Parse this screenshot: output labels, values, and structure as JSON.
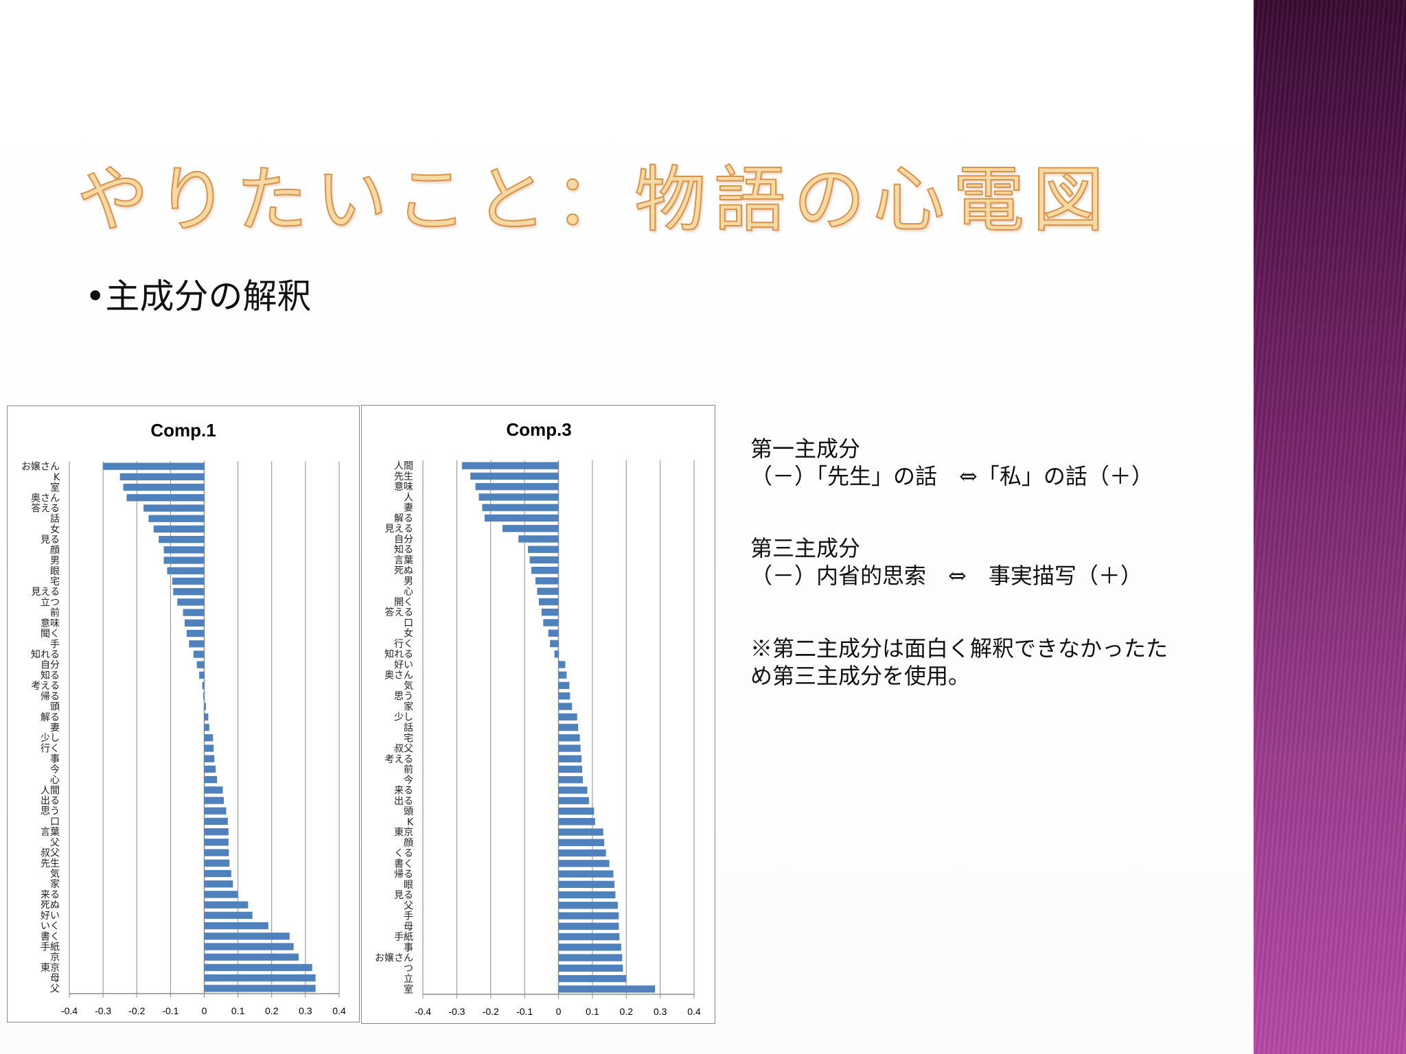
{
  "slide": {
    "title": "やりたいこと：物語の心電図",
    "bullet": "•主成分の解釈",
    "notes": [
      {
        "heading": "第一主成分",
        "body": "（－）「先生」の話　⇔「私」の話（＋）"
      },
      {
        "heading": "第三主成分",
        "body": "（－）内省的思索　⇔　事実描写（＋）"
      }
    ],
    "remark_lines": [
      "※第二主成分は面白く解釈できなかったた",
      "め第三主成分を使用。"
    ]
  },
  "colors": {
    "bar": "#4f81bd",
    "sidebar_top": "#3a0a32",
    "sidebar_bottom": "#b54aa6",
    "title_fill": "#f7d9a3"
  },
  "chart_data": [
    {
      "type": "bar",
      "orientation": "horizontal",
      "title": "Comp.1",
      "xlim": [
        -0.4,
        0.4
      ],
      "xticks": [
        "-0.4",
        "-0.3",
        "-0.2",
        "-0.1",
        "0",
        "0.1",
        "0.2",
        "0.3",
        "0.4"
      ],
      "grid": true,
      "categories": [
        "お嬢さん",
        "K",
        "室",
        "奥さん",
        "答える",
        "話",
        "女",
        "見る",
        "顔",
        "男",
        "眼",
        "宅",
        "見える",
        "立つ",
        "前",
        "意味",
        "聞く",
        "手",
        "知れる",
        "自分",
        "知る",
        "考える",
        "帰る",
        "頭",
        "解る",
        "妻",
        "少し",
        "行く",
        "事",
        "今",
        "心",
        "人間",
        "出る",
        "思う",
        "口",
        "言葉",
        "父",
        "叔父",
        "先生",
        "気",
        "家",
        "来る",
        "死ぬ",
        "好い",
        "いく",
        "書く",
        "手紙",
        "京",
        "東京",
        "母",
        "父"
      ],
      "values": [
        -0.3,
        -0.25,
        -0.24,
        -0.23,
        -0.18,
        -0.165,
        -0.15,
        -0.135,
        -0.12,
        -0.12,
        -0.11,
        -0.095,
        -0.092,
        -0.08,
        -0.063,
        -0.058,
        -0.052,
        -0.045,
        -0.032,
        -0.022,
        -0.015,
        -0.006,
        -0.003,
        0.005,
        0.012,
        0.015,
        0.026,
        0.028,
        0.03,
        0.034,
        0.038,
        0.055,
        0.058,
        0.065,
        0.07,
        0.072,
        0.072,
        0.073,
        0.075,
        0.08,
        0.085,
        0.1,
        0.13,
        0.143,
        0.19,
        0.253,
        0.265,
        0.28,
        0.32,
        0.33,
        0.33
      ]
    },
    {
      "type": "bar",
      "orientation": "horizontal",
      "title": "Comp.3",
      "xlim": [
        -0.4,
        0.4
      ],
      "xticks": [
        "-0.4",
        "-0.3",
        "-0.2",
        "-0.1",
        "0",
        "0.1",
        "0.2",
        "0.3",
        "0.4"
      ],
      "grid": true,
      "categories": [
        "人間",
        "先生",
        "意味",
        "人",
        "妻",
        "解る",
        "見える",
        "自分",
        "知る",
        "言葉",
        "死ぬ",
        "男",
        "心",
        "開く",
        "答える",
        "口",
        "女",
        "行く",
        "知れる",
        "好い",
        "奥さん",
        "気",
        "思う",
        "家",
        "少し",
        "話",
        "宅",
        "叔父",
        "考える",
        "前",
        "今",
        "来る",
        "出る",
        "頭",
        "K",
        "東京",
        "顔",
        "くる",
        "書く",
        "帰る",
        "眼",
        "見る",
        "父",
        "手",
        "母",
        "手紙",
        "事",
        "お嬢さん",
        "つ",
        "立",
        "室"
      ],
      "values": [
        -0.285,
        -0.26,
        -0.245,
        -0.235,
        -0.225,
        -0.218,
        -0.165,
        -0.118,
        -0.09,
        -0.085,
        -0.08,
        -0.068,
        -0.063,
        -0.058,
        -0.05,
        -0.045,
        -0.03,
        -0.025,
        -0.012,
        0.02,
        0.024,
        0.032,
        0.034,
        0.04,
        0.055,
        0.058,
        0.063,
        0.065,
        0.068,
        0.07,
        0.072,
        0.085,
        0.09,
        0.105,
        0.108,
        0.132,
        0.135,
        0.14,
        0.15,
        0.162,
        0.165,
        0.168,
        0.175,
        0.178,
        0.178,
        0.18,
        0.185,
        0.188,
        0.19,
        0.2,
        0.285
      ]
    }
  ]
}
